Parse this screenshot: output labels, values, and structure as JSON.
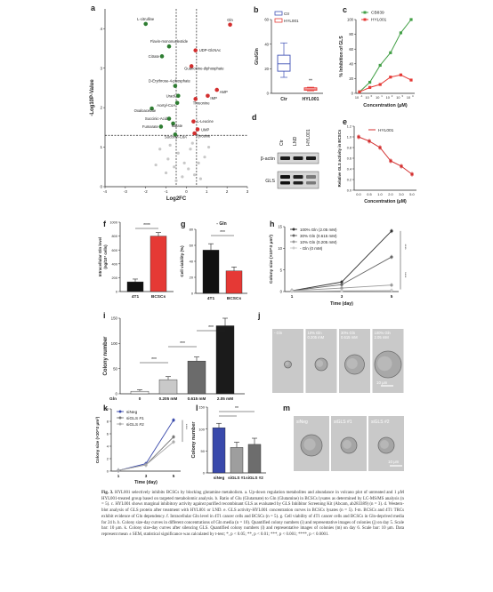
{
  "panels": {
    "a": {
      "letter": "a",
      "ylabel": "-Log10P-Value",
      "xlabel": "Log2FC",
      "yticks": [
        "0",
        "1",
        "2",
        "3",
        "4"
      ],
      "xticks": [
        "-4",
        "-3",
        "-2",
        "-1",
        "0",
        "1",
        "2",
        "3"
      ],
      "labels": [
        "L-citrulline",
        "Gln",
        "Flavin-mononucleotide",
        "UDP-GlcNAc",
        "Citrate",
        "Guanosine-diphosphate",
        "D-Erythrose-4-phosphate",
        "AMP",
        "IMP",
        "Threonine",
        "Uracil",
        "Acetyl-CoA",
        "Oxaloacetate",
        "Succinic-Acid",
        "L-Leucine",
        "Fumarate",
        "Malate",
        "UMP",
        "Succinyl-CoA",
        "Tyrosine"
      ]
    },
    "b": {
      "letter": "b",
      "ylabel": "Glu/Gln",
      "yticks": [
        "0",
        "20",
        "40",
        "60"
      ],
      "legend": [
        "Ctr",
        "HYL001"
      ],
      "categories": [
        "Ctr",
        "HYL001"
      ],
      "sig": "**"
    },
    "c": {
      "letter": "c",
      "ylabel": "% Inhibition of GLS",
      "xlabel": "Concentration (μM)",
      "legend": [
        "CB839",
        "HYL001"
      ],
      "yticks": [
        "0",
        "20",
        "40",
        "60",
        "80",
        "100"
      ]
    },
    "d": {
      "letter": "d",
      "lanes": [
        "Ctr",
        "LND",
        "HYL001"
      ],
      "bands": [
        "β-actin",
        "GLS"
      ]
    },
    "e": {
      "letter": "e",
      "ylabel": "Relative GLS activity in BCSCs",
      "xlabel": "Concentration (μM)",
      "legend": "HYL001",
      "xticks": [
        "0.0",
        "0.5",
        "1.0",
        "2.0",
        "3.0",
        "5.0"
      ],
      "yticks": [
        "0.0",
        "0.2",
        "0.4",
        "0.6",
        "0.8",
        "1.0",
        "1.2"
      ]
    },
    "f": {
      "letter": "f",
      "ylabel": "Intracellular Gln level (ng/10^7 cells)",
      "categories": [
        "4T1",
        "BCSCs"
      ],
      "yticks": [
        "0",
        "200",
        "400",
        "600",
        "800",
        "1000"
      ],
      "sig": "****"
    },
    "g": {
      "letter": "g",
      "title": "- Gln",
      "ylabel": "Cell viability (%)",
      "categories": [
        "4T1",
        "BCSCs"
      ],
      "yticks": [
        "0",
        "20",
        "40",
        "60",
        "80"
      ],
      "sig": "***"
    },
    "h": {
      "letter": "h",
      "ylabel": "Colony size (×10^3 μm²)",
      "xlabel": "Time (day)",
      "xticks": [
        "1",
        "3",
        "5"
      ],
      "yticks": [
        "0",
        "5",
        "10",
        "15"
      ],
      "legend": [
        "100% Gln (2.05 mM)",
        "30% Gln (0.615 mM)",
        "10% Gln (0.205 mM)",
        "- Gln (0 mM)"
      ],
      "sig": "****"
    },
    "i": {
      "letter": "i",
      "ylabel": "Colony number",
      "xlabel": "Gln",
      "categories": [
        "0",
        "0.205 mM",
        "0.615 mM",
        "2.05 mM"
      ],
      "yticks": [
        "0",
        "50",
        "100",
        "150"
      ],
      "sig": "***"
    },
    "j": {
      "letter": "j",
      "labels": [
        "- Gln",
        "10% Gln\n0.205 mM",
        "30% Gln\n0.615 mM",
        "100% Gln\n2.05 mM"
      ],
      "scale": "10 μm"
    },
    "k": {
      "letter": "k",
      "ylabel": "Colony size (×10^3 μm²)",
      "xlabel": "Time (day)",
      "xticks": [
        "1",
        "3",
        "5"
      ],
      "yticks": [
        "0",
        "2",
        "4",
        "6",
        "8",
        "10"
      ],
      "legend": [
        "siNeg",
        "siGLS #1",
        "siGLS #2"
      ],
      "sig": "****"
    },
    "l": {
      "letter": "l",
      "ylabel": "Colony number",
      "categories": [
        "siNeg",
        "siGLS #1",
        "siGLS #2"
      ],
      "yticks": [
        "0",
        "50",
        "100",
        "150"
      ],
      "sig": "**"
    },
    "m": {
      "letter": "m",
      "labels": [
        "siNeg",
        "siGLS #1",
        "siGLS #2"
      ],
      "scale": "10 μm"
    }
  },
  "chart_data": [
    {
      "panel": "a",
      "type": "scatter",
      "xlabel": "Log2FC",
      "ylabel": "-Log10P-Value",
      "xlim": [
        -4,
        3
      ],
      "ylim": [
        0,
        4.5
      ],
      "points": [
        {
          "x": -2.0,
          "y": 4.12,
          "label": "L-citrulline",
          "color": "#2e7d32"
        },
        {
          "x": 2.15,
          "y": 4.1,
          "label": "Gln",
          "color": "#d32f2f"
        },
        {
          "x": -0.85,
          "y": 3.55,
          "label": "Flavin-mononucleotide",
          "color": "#2e7d32"
        },
        {
          "x": 0.45,
          "y": 3.45,
          "label": "UDP-GlcNAc",
          "color": "#d32f2f"
        },
        {
          "x": -1.2,
          "y": 3.3,
          "label": "Citrate",
          "color": "#2e7d32"
        },
        {
          "x": 0.25,
          "y": 3.05,
          "label": "Guanosine-diphosphate",
          "color": "#d32f2f"
        },
        {
          "x": -0.55,
          "y": 2.55,
          "label": "D-Erythrose-4-phosphate",
          "color": "#2e7d32"
        },
        {
          "x": 1.5,
          "y": 2.45,
          "label": "AMP",
          "color": "#d32f2f"
        },
        {
          "x": 1.05,
          "y": 2.3,
          "label": "IMP",
          "color": "#d32f2f"
        },
        {
          "x": 0.45,
          "y": 2.22,
          "label": "Threonine",
          "color": "#d32f2f"
        },
        {
          "x": -0.4,
          "y": 2.3,
          "label": "Uracil",
          "color": "#2e7d32"
        },
        {
          "x": -0.45,
          "y": 2.12,
          "label": "Acetyl-CoA",
          "color": "#2e7d32"
        },
        {
          "x": -1.7,
          "y": 1.98,
          "label": "Oxaloacetate",
          "color": "#2e7d32"
        },
        {
          "x": -0.85,
          "y": 1.72,
          "label": "Succinic-Acid",
          "color": "#2e7d32"
        },
        {
          "x": 0.35,
          "y": 1.65,
          "label": "L-Leucine",
          "color": "#d32f2f"
        },
        {
          "x": -1.25,
          "y": 1.52,
          "label": "Fumarate",
          "color": "#2e7d32"
        },
        {
          "x": -0.65,
          "y": 1.6,
          "label": "Malate",
          "color": "#2e7d32"
        },
        {
          "x": 0.55,
          "y": 1.45,
          "label": "UMP",
          "color": "#d32f2f"
        },
        {
          "x": -0.55,
          "y": 1.32,
          "label": "Succinyl-CoA",
          "color": "#2e7d32"
        },
        {
          "x": 0.4,
          "y": 1.35,
          "label": "Tyrosine",
          "color": "#d32f2f"
        }
      ],
      "nonsig": [
        [
          -1.3,
          0.95
        ],
        [
          -0.9,
          0.7
        ],
        [
          -0.4,
          0.85
        ],
        [
          0.2,
          0.95
        ],
        [
          0.6,
          0.6
        ],
        [
          -0.6,
          0.5
        ],
        [
          0.1,
          0.45
        ],
        [
          -1.0,
          0.35
        ],
        [
          0.4,
          0.3
        ],
        [
          0.9,
          0.75
        ],
        [
          -0.2,
          0.25
        ],
        [
          1.1,
          1.0
        ],
        [
          -0.8,
          1.05
        ],
        [
          0.3,
          1.1
        ],
        [
          -1.5,
          0.55
        ],
        [
          0.7,
          0.2
        ],
        [
          -0.1,
          0.6
        ],
        [
          -0.5,
          0.15
        ]
      ],
      "thresholds": {
        "x": [
          -0.5,
          0.5
        ],
        "y": 1.3
      }
    },
    {
      "panel": "b",
      "type": "box",
      "series": [
        {
          "name": "Ctr",
          "q1": 18,
          "median": 24,
          "q3": 31,
          "min": 13,
          "max": 41
        },
        {
          "name": "HYL001",
          "q1": 2.5,
          "median": 3.5,
          "q3": 4.5,
          "min": 2,
          "max": 5
        }
      ],
      "ylim": [
        0,
        60
      ]
    },
    {
      "panel": "c",
      "type": "line",
      "x": [
        "10^-1",
        "10^0",
        "10^1",
        "10^2",
        "10^3",
        "10^4"
      ],
      "series": [
        {
          "name": "CB839",
          "values": [
            2,
            15,
            38,
            55,
            82,
            100
          ],
          "color": "#43a047"
        },
        {
          "name": "HYL001",
          "values": [
            2,
            8,
            12,
            22,
            25,
            18
          ],
          "color": "#e53935"
        }
      ],
      "ylim": [
        0,
        100
      ]
    },
    {
      "panel": "e",
      "type": "line",
      "x": [
        0,
        0.5,
        1.0,
        2.0,
        3.0,
        5.0
      ],
      "series": [
        {
          "name": "HYL001",
          "values": [
            1.0,
            0.92,
            0.8,
            0.55,
            0.45,
            0.3
          ],
          "color": "#d32f2f"
        }
      ],
      "ylim": [
        0,
        1.2
      ]
    },
    {
      "panel": "f",
      "type": "bar",
      "categories": [
        "4T1",
        "BCSCs"
      ],
      "values": [
        140,
        800
      ],
      "errors": [
        40,
        50
      ],
      "colors": [
        "#111111",
        "#e53935"
      ],
      "ylim": [
        0,
        1000
      ]
    },
    {
      "panel": "g",
      "type": "bar",
      "categories": [
        "4T1",
        "BCSCs"
      ],
      "values": [
        54,
        28
      ],
      "errors": [
        8,
        5
      ],
      "colors": [
        "#111111",
        "#e53935"
      ],
      "ylim": [
        0,
        80
      ]
    },
    {
      "panel": "h",
      "type": "line",
      "x": [
        1,
        3,
        5
      ],
      "series": [
        {
          "name": "100% Gln (2.05 mM)",
          "values": [
            0.2,
            2.2,
            14.0
          ],
          "color": "#333333"
        },
        {
          "name": "30% Gln (0.615 mM)",
          "values": [
            0.2,
            1.6,
            8.0
          ],
          "color": "#666666"
        },
        {
          "name": "10% Gln (0.205 mM)",
          "values": [
            0.2,
            0.8,
            1.5
          ],
          "color": "#999999"
        },
        {
          "name": "- Gln (0 mM)",
          "values": [
            0.1,
            0.2,
            0.3
          ],
          "color": "#cccccc"
        }
      ],
      "ylim": [
        0,
        15
      ]
    },
    {
      "panel": "i",
      "type": "bar",
      "categories": [
        "0",
        "0.205 mM",
        "0.615 mM",
        "2.05 mM"
      ],
      "values": [
        5,
        28,
        65,
        135
      ],
      "errors": [
        3,
        6,
        8,
        15
      ],
      "colors": [
        "#f2f2f2",
        "#c9c9c9",
        "#6b6b6b",
        "#1b1b1b"
      ],
      "ylim": [
        0,
        150
      ]
    },
    {
      "panel": "k",
      "type": "line",
      "x": [
        1,
        3,
        5
      ],
      "series": [
        {
          "name": "siNeg",
          "values": [
            0.1,
            1.2,
            8.2
          ],
          "color": "#3949ab"
        },
        {
          "name": "siGLS #1",
          "values": [
            0.1,
            1.0,
            5.5
          ],
          "color": "#777777"
        },
        {
          "name": "siGLS #2",
          "values": [
            0.1,
            1.0,
            4.7
          ],
          "color": "#aaaaaa"
        }
      ],
      "ylim": [
        0,
        10
      ]
    },
    {
      "panel": "l",
      "type": "bar",
      "categories": [
        "siNeg",
        "siGLS #1",
        "siGLS #2"
      ],
      "values": [
        103,
        58,
        65
      ],
      "errors": [
        10,
        12,
        14
      ],
      "colors": [
        "#3949ab",
        "#9e9e9e",
        "#6d6d6d"
      ],
      "ylim": [
        0,
        150
      ]
    }
  ],
  "caption": {
    "fig_label": "Fig. 3.",
    "text": "HYL001 selectively inhibits BCSCs by blocking glutamine metabolism. a. Up-down regulation metabolites and abundance in volcano plot of untreated and 1 μM HYL001-treated group based on targeted metabolomic analysis. b. Ratio of Glu (Glutamate) to Gln (Glutamine) in BCSCs lysates as determined by LC-MS/MS analysis (n = 5). c. HYL001 shows marginal inhibitory activity against purified recombinant GLS as evaluated by GLS Inhibitor Screening Kit (Abcam, ab283389) (n = 3). d. Western-blot analysis of GLS protein after treatment with HYL001 or LND. e. GLS activity-HYL001 concentration curves in BCSCs lysates (n = 5). f-m. BCSCs and 4T1 TRCs exhibit evidence of Gln dependency. f. Intracellular Gln level in 4T1 cancer cells and BCSCs (n = 5). g. Cell viability of 4T1 cancer cells and BCSCs in Gln-deprived media for 24 h. h. Colony size-day curves in different concentrations of Gln media (n = 10). Quantified colony numbers (i) and representative images of colonies (j) on day 5. Scale bar: 10 μm. k. Colony size-day curves after silencing GLS. Quantified colony numbers (l) and representative images of colonies (m) on day 6. Scale bar: 10 μm. Data represent mean ± SEM, statistical significance was calculated by t-test; *, p < 0.05; **, p < 0.01; ***, p < 0.001; ****, p < 0.0001."
  }
}
